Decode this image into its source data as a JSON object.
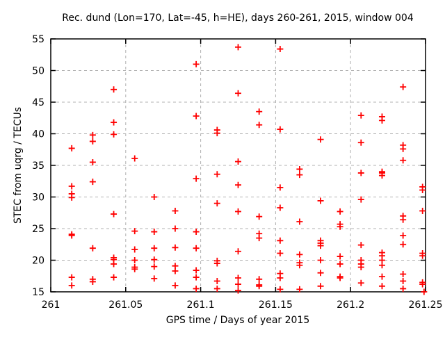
{
  "chart_data": {
    "type": "scatter",
    "title": "Rec. dund (Lon=170, Lat=-45, h=HE), days 260-261, 2015, window 004",
    "xlabel": "GPS time / Days of year 2015",
    "ylabel": "STEC from uqrg / TECUs",
    "xlim": [
      261,
      261.25
    ],
    "ylim": [
      15,
      55
    ],
    "xticks": [
      261,
      261.05,
      261.1,
      261.15,
      261.2,
      261.25
    ],
    "xtick_labels": [
      "261",
      "261.05",
      "261.1",
      "261.15",
      "261.2",
      "261.25"
    ],
    "yticks": [
      15,
      20,
      25,
      30,
      35,
      40,
      45,
      50,
      55
    ],
    "ytick_labels": [
      "15",
      "20",
      "25",
      "30",
      "35",
      "40",
      "45",
      "50",
      "55"
    ],
    "grid": true,
    "legend": "none",
    "marker": "plus",
    "marker_color": "#ff0000",
    "grid_color": "#b0b0b0",
    "border_color": "#000000",
    "series": [
      {
        "name": "STEC",
        "points": [
          [
            261.014,
            37.7
          ],
          [
            261.014,
            31.7
          ],
          [
            261.014,
            30.5
          ],
          [
            261.014,
            29.9
          ],
          [
            261.014,
            24.1
          ],
          [
            261.014,
            23.9
          ],
          [
            261.014,
            17.3
          ],
          [
            261.014,
            16.0
          ],
          [
            261.028,
            39.8
          ],
          [
            261.028,
            38.8
          ],
          [
            261.028,
            35.5
          ],
          [
            261.028,
            32.4
          ],
          [
            261.028,
            21.9
          ],
          [
            261.028,
            17.0
          ],
          [
            261.028,
            16.6
          ],
          [
            261.042,
            47.0
          ],
          [
            261.042,
            41.8
          ],
          [
            261.042,
            39.9
          ],
          [
            261.042,
            27.3
          ],
          [
            261.042,
            20.4
          ],
          [
            261.042,
            20.1
          ],
          [
            261.042,
            19.4
          ],
          [
            261.042,
            17.3
          ],
          [
            261.056,
            36.1
          ],
          [
            261.056,
            24.6
          ],
          [
            261.056,
            21.7
          ],
          [
            261.056,
            20.0
          ],
          [
            261.056,
            18.9
          ],
          [
            261.056,
            18.6
          ],
          [
            261.069,
            30.0
          ],
          [
            261.069,
            24.5
          ],
          [
            261.069,
            21.9
          ],
          [
            261.069,
            20.1
          ],
          [
            261.069,
            19.0
          ],
          [
            261.069,
            17.1
          ],
          [
            261.083,
            27.8
          ],
          [
            261.083,
            25.0
          ],
          [
            261.083,
            22.0
          ],
          [
            261.083,
            19.1
          ],
          [
            261.083,
            18.3
          ],
          [
            261.083,
            16.0
          ],
          [
            261.097,
            51.0
          ],
          [
            261.097,
            42.8
          ],
          [
            261.097,
            32.9
          ],
          [
            261.097,
            24.5
          ],
          [
            261.097,
            21.9
          ],
          [
            261.097,
            18.4
          ],
          [
            261.097,
            17.3
          ],
          [
            261.097,
            15.5
          ],
          [
            261.111,
            40.6
          ],
          [
            261.111,
            40.1
          ],
          [
            261.111,
            33.6
          ],
          [
            261.111,
            29.0
          ],
          [
            261.111,
            19.9
          ],
          [
            261.111,
            19.5
          ],
          [
            261.111,
            16.7
          ],
          [
            261.111,
            15.5
          ],
          [
            261.125,
            53.7
          ],
          [
            261.125,
            46.4
          ],
          [
            261.125,
            35.6
          ],
          [
            261.125,
            31.9
          ],
          [
            261.125,
            27.7
          ],
          [
            261.125,
            21.4
          ],
          [
            261.125,
            17.2
          ],
          [
            261.125,
            16.2
          ],
          [
            261.125,
            15.2
          ],
          [
            261.139,
            43.5
          ],
          [
            261.139,
            41.4
          ],
          [
            261.139,
            26.9
          ],
          [
            261.139,
            24.2
          ],
          [
            261.139,
            23.5
          ],
          [
            261.139,
            17.0
          ],
          [
            261.139,
            16.1
          ],
          [
            261.139,
            15.9
          ],
          [
            261.153,
            53.4
          ],
          [
            261.153,
            40.7
          ],
          [
            261.153,
            31.5
          ],
          [
            261.153,
            28.3
          ],
          [
            261.153,
            23.1
          ],
          [
            261.153,
            21.1
          ],
          [
            261.153,
            17.9
          ],
          [
            261.153,
            17.2
          ],
          [
            261.153,
            15.4
          ],
          [
            261.166,
            34.4
          ],
          [
            261.166,
            33.5
          ],
          [
            261.166,
            26.1
          ],
          [
            261.166,
            20.9
          ],
          [
            261.166,
            19.6
          ],
          [
            261.166,
            19.2
          ],
          [
            261.166,
            15.4
          ],
          [
            261.18,
            39.1
          ],
          [
            261.18,
            29.4
          ],
          [
            261.18,
            23.1
          ],
          [
            261.18,
            22.7
          ],
          [
            261.18,
            22.3
          ],
          [
            261.18,
            20.0
          ],
          [
            261.18,
            18.0
          ],
          [
            261.18,
            15.9
          ],
          [
            261.193,
            27.7
          ],
          [
            261.193,
            25.7
          ],
          [
            261.193,
            25.3
          ],
          [
            261.193,
            20.6
          ],
          [
            261.193,
            19.4
          ],
          [
            261.193,
            17.4
          ],
          [
            261.193,
            17.2
          ],
          [
            261.207,
            42.9
          ],
          [
            261.207,
            38.6
          ],
          [
            261.207,
            33.8
          ],
          [
            261.207,
            29.6
          ],
          [
            261.207,
            22.4
          ],
          [
            261.207,
            20.0
          ],
          [
            261.207,
            19.4
          ],
          [
            261.207,
            18.9
          ],
          [
            261.207,
            16.4
          ],
          [
            261.221,
            42.7
          ],
          [
            261.221,
            42.1
          ],
          [
            261.221,
            34.0
          ],
          [
            261.221,
            33.8
          ],
          [
            261.221,
            33.4
          ],
          [
            261.221,
            21.2
          ],
          [
            261.221,
            20.7
          ],
          [
            261.221,
            20.0
          ],
          [
            261.221,
            19.2
          ],
          [
            261.221,
            17.4
          ],
          [
            261.221,
            15.9
          ],
          [
            261.235,
            47.4
          ],
          [
            261.235,
            38.2
          ],
          [
            261.235,
            37.6
          ],
          [
            261.235,
            35.8
          ],
          [
            261.235,
            27.0
          ],
          [
            261.235,
            26.4
          ],
          [
            261.235,
            23.9
          ],
          [
            261.235,
            22.5
          ],
          [
            261.235,
            17.8
          ],
          [
            261.235,
            16.7
          ],
          [
            261.235,
            15.5
          ],
          [
            261.248,
            31.6
          ],
          [
            261.248,
            31.1
          ],
          [
            261.248,
            27.8
          ],
          [
            261.248,
            21.1
          ],
          [
            261.248,
            20.7
          ],
          [
            261.248,
            16.5
          ],
          [
            261.248,
            16.2
          ],
          [
            261.249,
            15.0
          ]
        ]
      }
    ]
  }
}
